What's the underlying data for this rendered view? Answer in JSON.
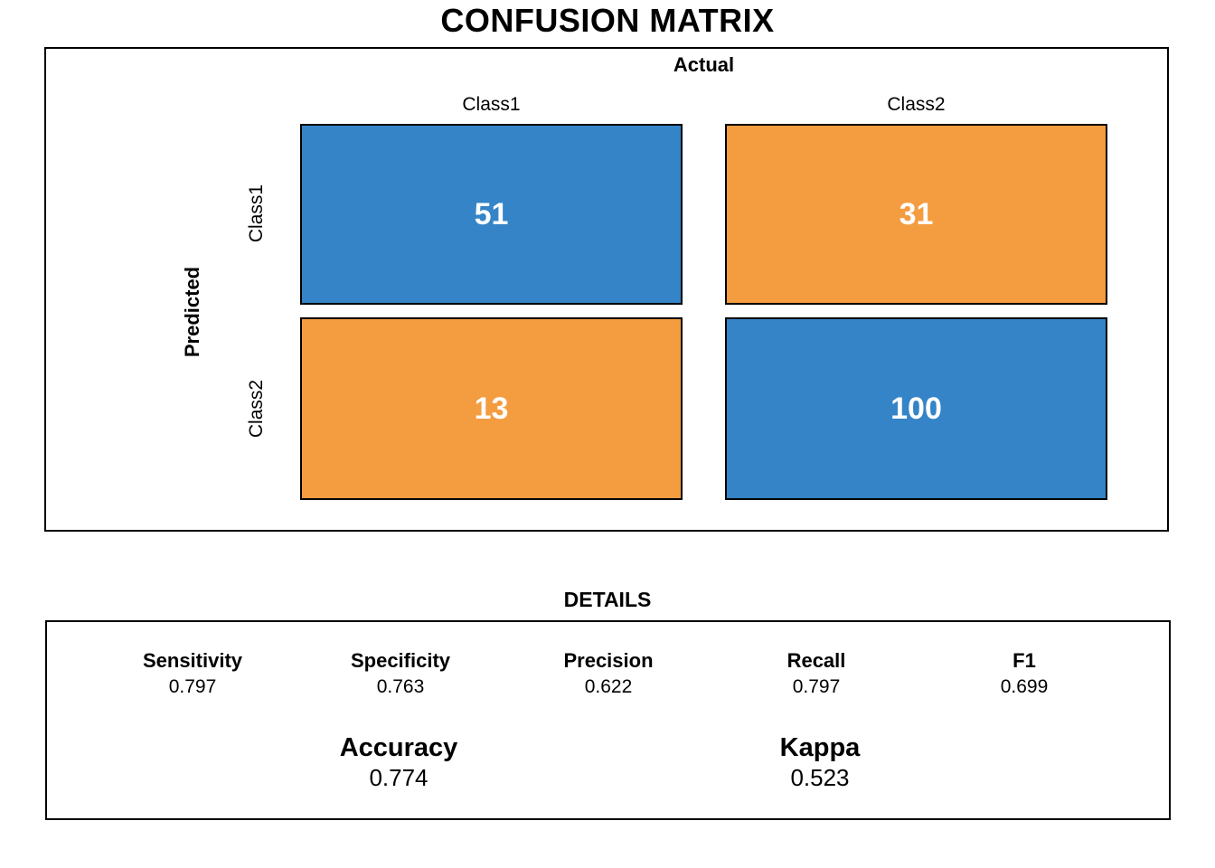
{
  "page_title": "CONFUSION MATRIX",
  "colors": {
    "correct_cell_blue": "#3484C7",
    "error_cell_orange": "#F49C40",
    "cell_value_text": "#FFFFFF",
    "border": "#000000"
  },
  "matrix": {
    "top_axis_label": "Actual",
    "left_axis_label": "Predicted",
    "col_headers": [
      "Class1",
      "Class2"
    ],
    "row_headers": [
      "Class1",
      "Class2"
    ],
    "cells": [
      {
        "row": "Class1",
        "col": "Class1",
        "value": "51",
        "color": "#3484C7"
      },
      {
        "row": "Class1",
        "col": "Class2",
        "value": "31",
        "color": "#F49C40"
      },
      {
        "row": "Class2",
        "col": "Class1",
        "value": "13",
        "color": "#F49C40"
      },
      {
        "row": "Class2",
        "col": "Class2",
        "value": "100",
        "color": "#3484C7"
      }
    ]
  },
  "details": {
    "title": "DETAILS",
    "metrics": [
      {
        "label": "Sensitivity",
        "value": "0.797"
      },
      {
        "label": "Specificity",
        "value": "0.763"
      },
      {
        "label": "Precision",
        "value": "0.622"
      },
      {
        "label": "Recall",
        "value": "0.797"
      },
      {
        "label": "F1",
        "value": "0.699"
      }
    ],
    "summary": [
      {
        "label": "Accuracy",
        "value": "0.774"
      },
      {
        "label": "Kappa",
        "value": "0.523"
      }
    ]
  },
  "chart_data": {
    "type": "heatmap",
    "title": "CONFUSION MATRIX",
    "xlabel": "Actual",
    "ylabel": "Predicted",
    "x_categories": [
      "Class1",
      "Class2"
    ],
    "y_categories": [
      "Class1",
      "Class2"
    ],
    "values": [
      [
        51,
        31
      ],
      [
        13,
        100
      ]
    ],
    "cell_colors": [
      [
        "#3484C7",
        "#F49C40"
      ],
      [
        "#F49C40",
        "#3484C7"
      ]
    ],
    "legend": "none",
    "grid": false,
    "metrics": {
      "Sensitivity": 0.797,
      "Specificity": 0.763,
      "Precision": 0.622,
      "Recall": 0.797,
      "F1": 0.699,
      "Accuracy": 0.774,
      "Kappa": 0.523
    }
  }
}
